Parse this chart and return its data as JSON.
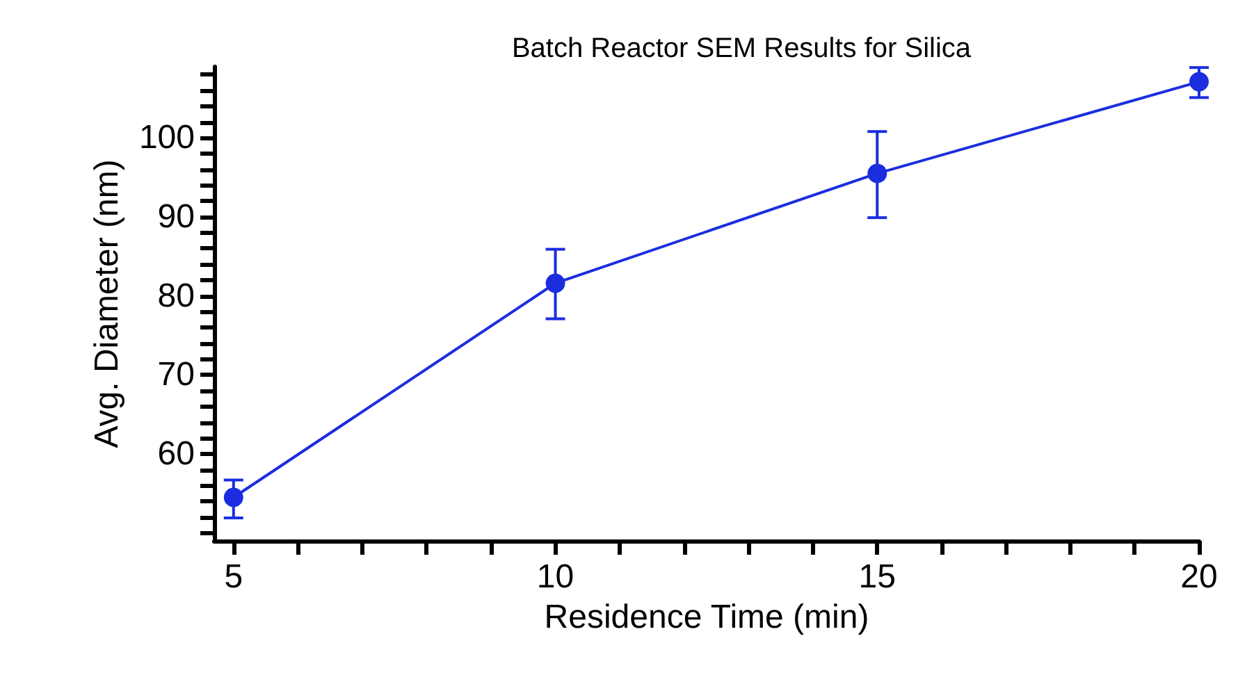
{
  "chart_data": {
    "type": "line",
    "title": "Batch Reactor SEM Results for Silica",
    "xlabel": "Residence Time (min)",
    "ylabel": "Avg. Diameter (nm)",
    "x": [
      5,
      10,
      15,
      20
    ],
    "series": [
      {
        "color": "#1a2ee0",
        "values": [
          54.5,
          81.6,
          95.5,
          107.1
        ],
        "errors": [
          [
            51.9,
            56.7
          ],
          [
            77.1,
            85.9
          ],
          [
            89.9,
            100.8
          ],
          [
            105.1,
            108.9
          ]
        ]
      }
    ],
    "xlim": [
      4.7,
      20
    ],
    "xticks": [
      5,
      {
        "value": 6,
        "label": null
      },
      {
        "value": 7,
        "label": null
      },
      {
        "value": 8,
        "label": null
      },
      {
        "value": 9,
        "label": null
      },
      10,
      {
        "value": 11,
        "label": null
      },
      {
        "value": 12,
        "label": null
      },
      {
        "value": 13,
        "label": null
      },
      {
        "value": 14,
        "label": null
      },
      15,
      {
        "value": 16,
        "label": null
      },
      {
        "value": 17,
        "label": null
      },
      {
        "value": 18,
        "label": null
      },
      {
        "value": 19,
        "label": null
      },
      20
    ],
    "ylim": [
      49,
      109
    ],
    "yticks": [
      {
        "value": 50,
        "label": null
      },
      {
        "value": 52,
        "label": null
      },
      {
        "value": 54,
        "label": null
      },
      {
        "value": 56,
        "label": null
      },
      {
        "value": 58,
        "label": null
      },
      60,
      {
        "value": 62,
        "label": null
      },
      {
        "value": 64,
        "label": null
      },
      {
        "value": 66,
        "label": null
      },
      {
        "value": 68,
        "label": null
      },
      70,
      {
        "value": 72,
        "label": null
      },
      {
        "value": 74,
        "label": null
      },
      {
        "value": 76,
        "label": null
      },
      {
        "value": 78,
        "label": null
      },
      80,
      {
        "value": 82,
        "label": null
      },
      {
        "value": 84,
        "label": null
      },
      {
        "value": 86,
        "label": null
      },
      {
        "value": 88,
        "label": null
      },
      90,
      {
        "value": 92,
        "label": null
      },
      {
        "value": 94,
        "label": null
      },
      {
        "value": 96,
        "label": null
      },
      {
        "value": 98,
        "label": null
      },
      100,
      {
        "value": 102,
        "label": null
      },
      {
        "value": 104,
        "label": null
      },
      {
        "value": 106,
        "label": null
      },
      {
        "value": 108,
        "label": null
      }
    ],
    "grid": false,
    "marker": "circle",
    "line_style": "solid"
  }
}
